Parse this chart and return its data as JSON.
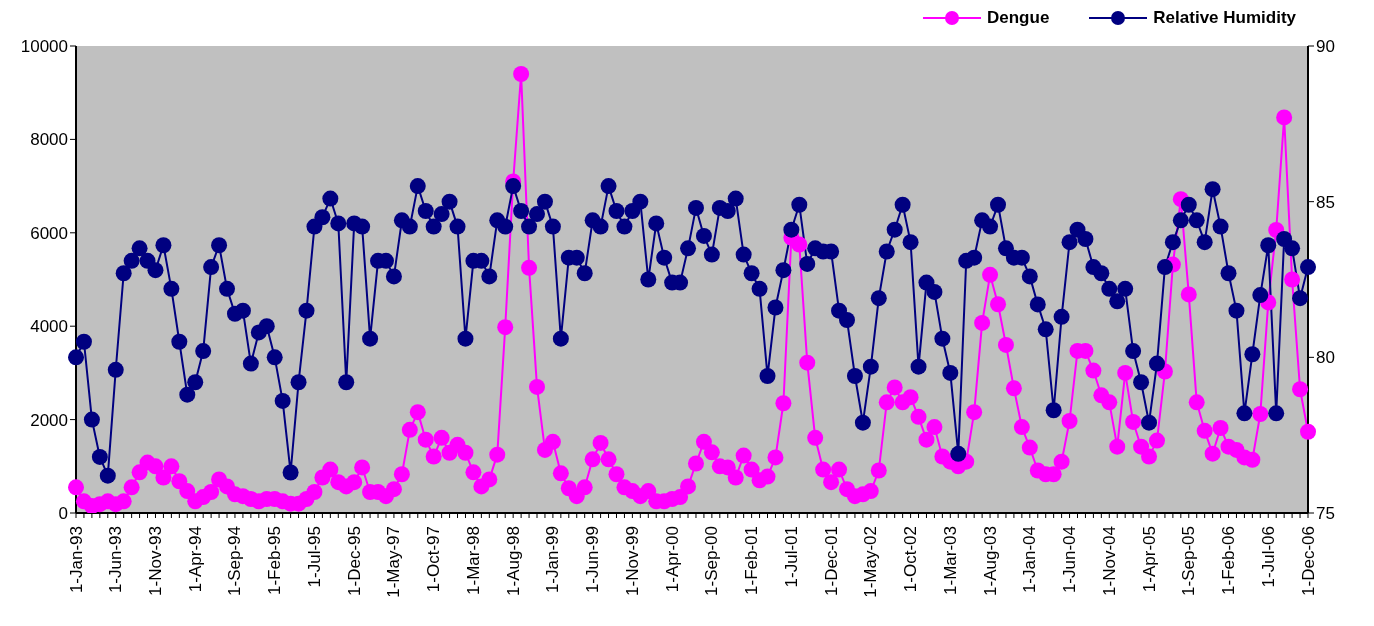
{
  "chart_data": {
    "type": "line",
    "categories": [
      "1-Jan-93",
      null,
      null,
      null,
      null,
      "1-Jun-93",
      null,
      null,
      null,
      null,
      "1-Nov-93",
      null,
      null,
      null,
      null,
      "1-Apr-94",
      null,
      null,
      null,
      null,
      "1-Sep-94",
      null,
      null,
      null,
      null,
      "1-Feb-95",
      null,
      null,
      null,
      null,
      "1-Jul-95",
      null,
      null,
      null,
      null,
      "1-Dec-95",
      null,
      null,
      null,
      null,
      "1-May-97",
      null,
      null,
      null,
      null,
      "1-Oct-97",
      null,
      null,
      null,
      null,
      "1-Mar-98",
      null,
      null,
      null,
      null,
      "1-Aug-98",
      null,
      null,
      null,
      null,
      "1-Jan-99",
      null,
      null,
      null,
      null,
      "1-Jun-99",
      null,
      null,
      null,
      null,
      "1-Nov-99",
      null,
      null,
      null,
      null,
      "1-Apr-00",
      null,
      null,
      null,
      null,
      "1-Sep-00",
      null,
      null,
      null,
      null,
      "1-Feb-01",
      null,
      null,
      null,
      null,
      "1-Jul-01",
      null,
      null,
      null,
      null,
      "1-Dec-01",
      null,
      null,
      null,
      null,
      "1-May-02",
      null,
      null,
      null,
      null,
      "1-Oct-02",
      null,
      null,
      null,
      null,
      "1-Mar-03",
      null,
      null,
      null,
      null,
      "1-Aug-03",
      null,
      null,
      null,
      null,
      "1-Jan-04",
      null,
      null,
      null,
      null,
      "1-Jun-04",
      null,
      null,
      null,
      null,
      "1-Nov-04",
      null,
      null,
      null,
      null,
      "1-Apr-05",
      null,
      null,
      null,
      null,
      "1-Sep-05",
      null,
      null,
      null,
      null,
      "1-Feb-06",
      null,
      null,
      null,
      null,
      "1-Jul-06",
      null,
      null,
      null,
      null,
      "1-Dec-06"
    ],
    "series": [
      {
        "name": "Dengue",
        "color": "#ff00ff",
        "values": [
          550,
          250,
          150,
          190,
          250,
          190,
          250,
          550,
          870,
          1080,
          1000,
          760,
          1000,
          680,
          470,
          250,
          340,
          450,
          720,
          570,
          400,
          360,
          300,
          250,
          300,
          300,
          250,
          200,
          200,
          300,
          450,
          760,
          930,
          660,
          570,
          660,
          975,
          450,
          450,
          360,
          510,
          830,
          1780,
          2160,
          1570,
          1210,
          1610,
          1290,
          1460,
          1290,
          870,
          570,
          720,
          1250,
          3980,
          7100,
          9400,
          5250,
          2700,
          1350,
          1525,
          850,
          530,
          360,
          550,
          1150,
          1500,
          1150,
          830,
          550,
          470,
          360,
          470,
          250,
          250,
          300,
          340,
          570,
          1060,
          1525,
          1300,
          1000,
          975,
          760,
          1230,
          930,
          700,
          780,
          1190,
          2350,
          5900,
          5750,
          3220,
          1610,
          930,
          660,
          930,
          510,
          360,
          400,
          470,
          910,
          2370,
          2690,
          2370,
          2480,
          2060,
          1570,
          1840,
          1210,
          1100,
          1000,
          1100,
          2160,
          4070,
          5100,
          4470,
          3600,
          2670,
          1840,
          1400,
          910,
          830,
          830,
          1100,
          1970,
          3470,
          3470,
          3050,
          2520,
          2370,
          1420,
          3000,
          1950,
          1420,
          1210,
          1550,
          3030,
          5320,
          6720,
          4680,
          2370,
          1760,
          1270,
          1820,
          1420,
          1350,
          1190,
          1140,
          2120,
          4510,
          6060,
          8470,
          5000,
          2650,
          1740
        ]
      },
      {
        "name": "Relative Humidity",
        "color": "#000080",
        "axis": "y2",
        "values": [
          80.0,
          80.5,
          78.0,
          76.8,
          76.2,
          79.6,
          82.7,
          83.1,
          83.5,
          83.1,
          82.8,
          83.6,
          82.2,
          80.5,
          78.8,
          79.2,
          80.2,
          82.9,
          83.6,
          82.2,
          81.4,
          81.5,
          79.8,
          80.8,
          81.0,
          80.0,
          78.6,
          76.3,
          79.2,
          81.5,
          84.2,
          84.5,
          85.1,
          84.3,
          79.2,
          84.3,
          84.2,
          80.6,
          83.1,
          83.1,
          82.6,
          84.4,
          84.2,
          85.5,
          84.7,
          84.2,
          84.6,
          85.0,
          84.2,
          80.6,
          83.1,
          83.1,
          82.6,
          84.4,
          84.2,
          85.5,
          84.7,
          84.2,
          84.6,
          85.0,
          84.2,
          80.6,
          83.2,
          83.2,
          82.7,
          84.4,
          84.2,
          85.5,
          84.7,
          84.2,
          84.7,
          85.0,
          82.5,
          84.3,
          83.2,
          82.4,
          82.4,
          83.5,
          84.8,
          83.9,
          83.3,
          84.8,
          84.7,
          85.1,
          83.3,
          82.7,
          82.2,
          79.4,
          81.6,
          82.8,
          84.1,
          84.9,
          83.0,
          83.5,
          83.4,
          83.4,
          81.5,
          81.2,
          79.4,
          77.9,
          79.7,
          81.9,
          83.4,
          84.1,
          84.9,
          83.7,
          79.7,
          82.4,
          82.1,
          80.6,
          79.5,
          76.9,
          83.1,
          83.2,
          84.4,
          84.2,
          84.9,
          83.5,
          83.2,
          83.2,
          82.6,
          81.7,
          80.9,
          78.3,
          81.3,
          83.7,
          84.1,
          83.8,
          82.9,
          82.7,
          82.2,
          81.8,
          82.2,
          80.2,
          79.2,
          77.9,
          79.8,
          82.9,
          83.7,
          84.4,
          84.9,
          84.4,
          83.7,
          85.4,
          84.2,
          82.7,
          81.5,
          78.2,
          80.1,
          82.0,
          83.6,
          78.2,
          83.8,
          83.5,
          81.9,
          82.9
        ]
      }
    ],
    "ylim": [
      0,
      10000
    ],
    "yticks": [
      0,
      2000,
      4000,
      6000,
      8000,
      10000
    ],
    "y2lim": [
      75,
      90
    ],
    "y2ticks": [
      75,
      80,
      85,
      90
    ],
    "grid": false,
    "legend": "top right",
    "marker": "circle",
    "line_style": "solid"
  }
}
